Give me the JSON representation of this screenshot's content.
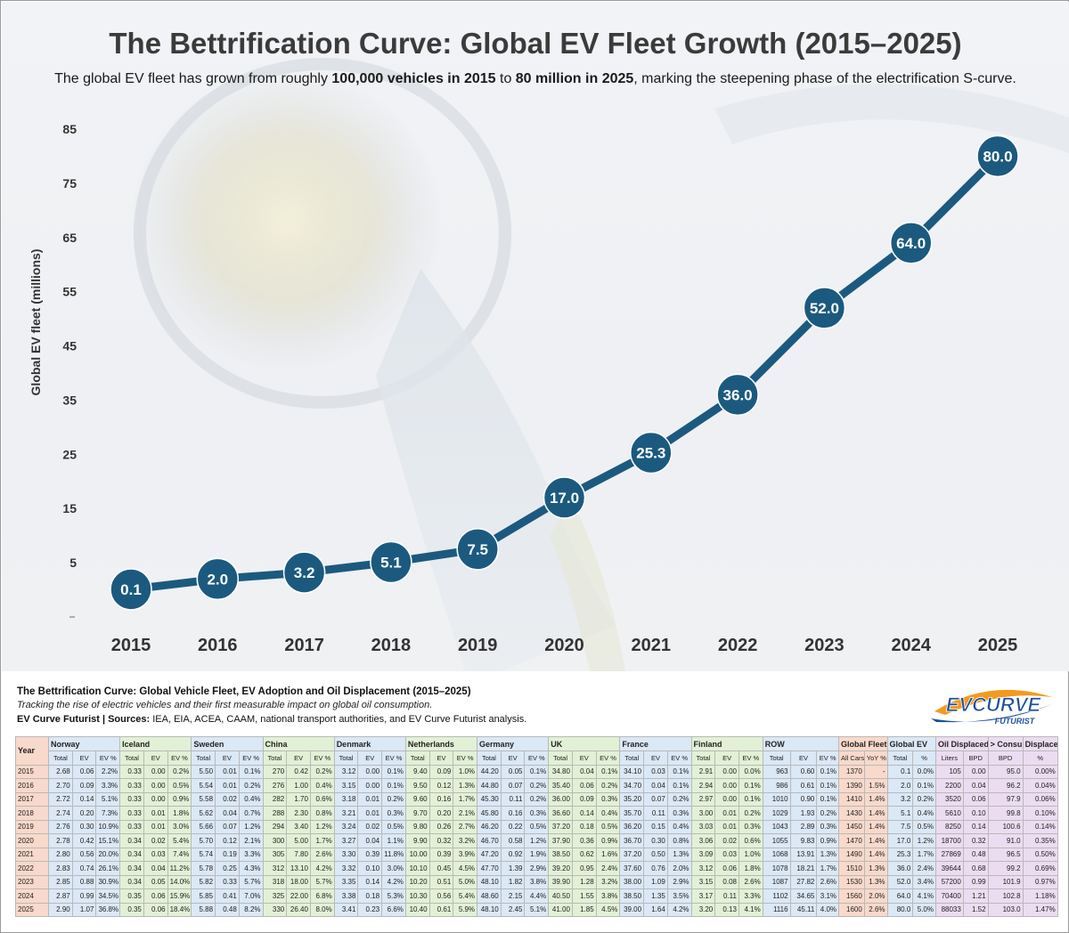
{
  "title": "The Bettrification Curve: Global EV Fleet Growth (2015–2025)",
  "subtitle": {
    "part1": "The global EV fleet has grown from roughly ",
    "bold1": "100,000 vehicles in 2015",
    "part2": " to ",
    "bold2": "80 million in 2025",
    "part3": ", marking the steepening phase of the electrification S-curve."
  },
  "chart_data": {
    "type": "line",
    "title": "The Bettrification Curve: Global EV Fleet Growth (2015–2025)",
    "xlabel": "",
    "ylabel": "Global EV fleet (millions)",
    "categories": [
      "2015",
      "2016",
      "2017",
      "2018",
      "2019",
      "2020",
      "2021",
      "2022",
      "2023",
      "2024",
      "2025"
    ],
    "values": [
      0.1,
      2.0,
      3.2,
      5.1,
      7.5,
      17.0,
      25.3,
      36.0,
      52.0,
      64.0,
      80.0
    ],
    "labels": [
      "0.1",
      "2.0",
      "3.2",
      "5.1",
      "7.5",
      "17.0",
      "25.3",
      "36.0",
      "52.0",
      "64.0",
      "80.0"
    ],
    "yticks": [
      "5",
      "15",
      "25",
      "35",
      "45",
      "55",
      "65",
      "75",
      "85"
    ],
    "ylim": [
      -5,
      85
    ],
    "line_color": "#1b5a7e",
    "marker_color": "#1b5a7e",
    "grid": false
  },
  "caption": {
    "title": "The Bettrification Curve: Global Vehicle Fleet, EV Adoption and Oil Displacement (2015–2025)",
    "subtitle": "Tracking the rise of electric vehicles and their first measurable impact on global oil consumption.",
    "source_brand": "EV Curve Futurist | Sources:",
    "source_text": " IEA, EIA, ACEA, CAAM, national transport authorities, and EV Curve Futurist analysis."
  },
  "logo": {
    "main": "EVCURVE",
    "sub": "FUTURIST"
  },
  "table": {
    "year_header": "Year",
    "groups": [
      {
        "name": "Norway",
        "cols": [
          "Total",
          "EV",
          "EV %"
        ],
        "color": "a"
      },
      {
        "name": "Iceland",
        "cols": [
          "Total",
          "EV",
          "EV %"
        ],
        "color": "b"
      },
      {
        "name": "Sweden",
        "cols": [
          "Total",
          "EV",
          "EV %"
        ],
        "color": "a"
      },
      {
        "name": "China",
        "cols": [
          "Total",
          "EV",
          "EV %"
        ],
        "color": "b"
      },
      {
        "name": "Denmark",
        "cols": [
          "Total",
          "EV",
          "EV %"
        ],
        "color": "a"
      },
      {
        "name": "Netherlands",
        "cols": [
          "Total",
          "EV",
          "EV %"
        ],
        "color": "b"
      },
      {
        "name": "Germany",
        "cols": [
          "Total",
          "EV",
          "EV %"
        ],
        "color": "a"
      },
      {
        "name": "UK",
        "cols": [
          "Total",
          "EV",
          "EV %"
        ],
        "color": "b"
      },
      {
        "name": "France",
        "cols": [
          "Total",
          "EV",
          "EV %"
        ],
        "color": "a"
      },
      {
        "name": "Finland",
        "cols": [
          "Total",
          "EV",
          "EV %"
        ],
        "color": "b"
      },
      {
        "name": "ROW",
        "cols": [
          "Total",
          "EV",
          "EV %"
        ],
        "color": "a"
      },
      {
        "name": "Global Fleet",
        "cols": [
          "All Cars",
          "YoY %"
        ],
        "color": "gf"
      },
      {
        "name": "Global EV",
        "cols": [
          "Total",
          "%"
        ],
        "color": "ge"
      },
      {
        "name": "Oil Displaced",
        "cols": [
          "Liters",
          "BPD"
        ],
        "color": "oil"
      },
      {
        "name": "> Consumed",
        "cols": [
          "BPD"
        ],
        "color": "oil"
      },
      {
        "name": "Displaced",
        "cols": [
          "%"
        ],
        "color": "oil"
      }
    ],
    "rows": [
      [
        "2015",
        "2.68",
        "0.06",
        "2.2%",
        "0.33",
        "0.00",
        "0.2%",
        "5.50",
        "0.01",
        "0.1%",
        "270",
        "0.42",
        "0.2%",
        "3.12",
        "0.00",
        "0.1%",
        "9.40",
        "0.09",
        "1.0%",
        "44.20",
        "0.05",
        "0.1%",
        "34.80",
        "0.04",
        "0.1%",
        "34.10",
        "0.03",
        "0.1%",
        "2.91",
        "0.00",
        "0.0%",
        "963",
        "0.60",
        "0.1%",
        "1370",
        "-",
        "0.1",
        "0.0%",
        "105",
        "0.00",
        "95.0",
        "0.00%"
      ],
      [
        "2016",
        "2.70",
        "0.09",
        "3.3%",
        "0.33",
        "0.00",
        "0.5%",
        "5.54",
        "0.01",
        "0.2%",
        "276",
        "1.00",
        "0.4%",
        "3.15",
        "0.00",
        "0.1%",
        "9.50",
        "0.12",
        "1.3%",
        "44.80",
        "0.07",
        "0.2%",
        "35.40",
        "0.06",
        "0.2%",
        "34.70",
        "0.04",
        "0.1%",
        "2.94",
        "0.00",
        "0.1%",
        "986",
        "0.61",
        "0.1%",
        "1390",
        "1.5%",
        "2.0",
        "0.1%",
        "2200",
        "0.04",
        "96.2",
        "0.04%"
      ],
      [
        "2017",
        "2.72",
        "0.14",
        "5.1%",
        "0.33",
        "0.00",
        "0.9%",
        "5.58",
        "0.02",
        "0.4%",
        "282",
        "1.70",
        "0.6%",
        "3.18",
        "0.01",
        "0.2%",
        "9.60",
        "0.16",
        "1.7%",
        "45.30",
        "0.11",
        "0.2%",
        "36.00",
        "0.09",
        "0.3%",
        "35.20",
        "0.07",
        "0.2%",
        "2.97",
        "0.00",
        "0.1%",
        "1010",
        "0.90",
        "0.1%",
        "1410",
        "1.4%",
        "3.2",
        "0.2%",
        "3520",
        "0.06",
        "97.9",
        "0.06%"
      ],
      [
        "2018",
        "2.74",
        "0.20",
        "7.3%",
        "0.33",
        "0.01",
        "1.8%",
        "5.62",
        "0.04",
        "0.7%",
        "288",
        "2.30",
        "0.8%",
        "3.21",
        "0.01",
        "0.3%",
        "9.70",
        "0.20",
        "2.1%",
        "45.80",
        "0.16",
        "0.3%",
        "36.60",
        "0.14",
        "0.4%",
        "35.70",
        "0.11",
        "0.3%",
        "3.00",
        "0.01",
        "0.2%",
        "1029",
        "1.93",
        "0.2%",
        "1430",
        "1.4%",
        "5.1",
        "0.4%",
        "5610",
        "0.10",
        "99.8",
        "0.10%"
      ],
      [
        "2019",
        "2.76",
        "0.30",
        "10.9%",
        "0.33",
        "0.01",
        "3.0%",
        "5.66",
        "0.07",
        "1.2%",
        "294",
        "3.40",
        "1.2%",
        "3.24",
        "0.02",
        "0.5%",
        "9.80",
        "0.26",
        "2.7%",
        "46.20",
        "0.22",
        "0.5%",
        "37.20",
        "0.18",
        "0.5%",
        "36.20",
        "0.15",
        "0.4%",
        "3.03",
        "0.01",
        "0.3%",
        "1043",
        "2.89",
        "0.3%",
        "1450",
        "1.4%",
        "7.5",
        "0.5%",
        "8250",
        "0.14",
        "100.6",
        "0.14%"
      ],
      [
        "2020",
        "2.78",
        "0.42",
        "15.1%",
        "0.34",
        "0.02",
        "5.4%",
        "5.70",
        "0.12",
        "2.1%",
        "300",
        "5.00",
        "1.7%",
        "3.27",
        "0.04",
        "1.1%",
        "9.90",
        "0.32",
        "3.2%",
        "46.70",
        "0.58",
        "1.2%",
        "37.90",
        "0.36",
        "0.9%",
        "36.70",
        "0.30",
        "0.8%",
        "3.06",
        "0.02",
        "0.6%",
        "1055",
        "9.83",
        "0.9%",
        "1470",
        "1.4%",
        "17.0",
        "1.2%",
        "18700",
        "0.32",
        "91.0",
        "0.35%"
      ],
      [
        "2021",
        "2.80",
        "0.56",
        "20.0%",
        "0.34",
        "0.03",
        "7.4%",
        "5.74",
        "0.19",
        "3.3%",
        "305",
        "7.80",
        "2.6%",
        "3.30",
        "0.39",
        "11.8%",
        "10.00",
        "0.39",
        "3.9%",
        "47.20",
        "0.92",
        "1.9%",
        "38.50",
        "0.62",
        "1.6%",
        "37.20",
        "0.50",
        "1.3%",
        "3.09",
        "0.03",
        "1.0%",
        "1068",
        "13.91",
        "1.3%",
        "1490",
        "1.4%",
        "25.3",
        "1.7%",
        "27869",
        "0.48",
        "96.5",
        "0.50%"
      ],
      [
        "2022",
        "2.83",
        "0.74",
        "26.1%",
        "0.34",
        "0.04",
        "11.2%",
        "5.78",
        "0.25",
        "4.3%",
        "312",
        "13.10",
        "4.2%",
        "3.32",
        "0.10",
        "3.0%",
        "10.10",
        "0.45",
        "4.5%",
        "47.70",
        "1.39",
        "2.9%",
        "39.20",
        "0.95",
        "2.4%",
        "37.60",
        "0.76",
        "2.0%",
        "3.12",
        "0.06",
        "1.8%",
        "1078",
        "18.21",
        "1.7%",
        "1510",
        "1.3%",
        "36.0",
        "2.4%",
        "39644",
        "0.68",
        "99.2",
        "0.69%"
      ],
      [
        "2023",
        "2.85",
        "0.88",
        "30.9%",
        "0.34",
        "0.05",
        "14.0%",
        "5.82",
        "0.33",
        "5.7%",
        "318",
        "18.00",
        "5.7%",
        "3.35",
        "0.14",
        "4.2%",
        "10.20",
        "0.51",
        "5.0%",
        "48.10",
        "1.82",
        "3.8%",
        "39.90",
        "1.28",
        "3.2%",
        "38.00",
        "1.09",
        "2.9%",
        "3.15",
        "0.08",
        "2.6%",
        "1087",
        "27.82",
        "2.6%",
        "1530",
        "1.3%",
        "52.0",
        "3.4%",
        "57200",
        "0.99",
        "101.9",
        "0.97%"
      ],
      [
        "2024",
        "2.87",
        "0.99",
        "34.5%",
        "0.35",
        "0.06",
        "15.9%",
        "5.85",
        "0.41",
        "7.0%",
        "325",
        "22.00",
        "6.8%",
        "3.38",
        "0.18",
        "5.3%",
        "10.30",
        "0.56",
        "5.4%",
        "48.60",
        "2.15",
        "4.4%",
        "40.50",
        "1.55",
        "3.8%",
        "38.50",
        "1.35",
        "3.5%",
        "3.17",
        "0.11",
        "3.3%",
        "1102",
        "34.65",
        "3.1%",
        "1560",
        "2.0%",
        "64.0",
        "4.1%",
        "70400",
        "1.21",
        "102.8",
        "1.18%"
      ],
      [
        "2025",
        "2.90",
        "1.07",
        "36.8%",
        "0.35",
        "0.06",
        "18.4%",
        "5.88",
        "0.48",
        "8.2%",
        "330",
        "26.40",
        "8.0%",
        "3.41",
        "0.23",
        "6.6%",
        "10.40",
        "0.61",
        "5.9%",
        "48.10",
        "2.45",
        "5.1%",
        "41.00",
        "1.85",
        "4.5%",
        "39.00",
        "1.64",
        "4.2%",
        "3.20",
        "0.13",
        "4.1%",
        "1116",
        "45.11",
        "4.0%",
        "1600",
        "2.6%",
        "80.0",
        "5.0%",
        "88033",
        "1.52",
        "103.0",
        "1.47%"
      ]
    ]
  }
}
